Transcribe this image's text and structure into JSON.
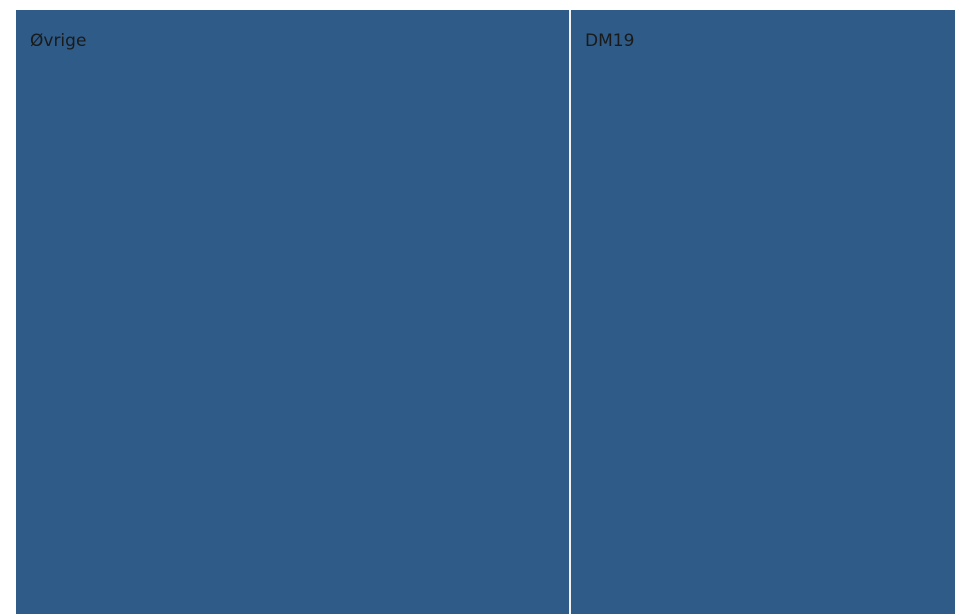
{
  "chart_data": {
    "type": "treemap",
    "items": [
      {
        "label": "Øvrige",
        "value": 59,
        "color": "#2e5b87"
      },
      {
        "label": "DM19",
        "value": 41,
        "color": "#2e5b87"
      }
    ],
    "divider_color": "#f2f2f2"
  }
}
